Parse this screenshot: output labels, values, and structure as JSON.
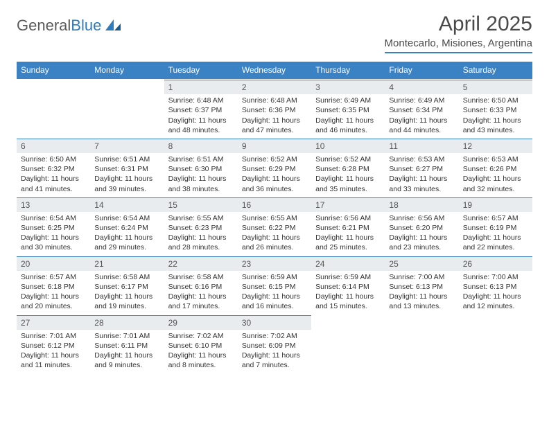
{
  "logo": {
    "text1": "General",
    "text2": "Blue"
  },
  "title": "April 2025",
  "location": "Montecarlo, Misiones, Argentina",
  "colors": {
    "header_bar": "#3b82c4",
    "daynum_bg": "#e9ecef",
    "text": "#333333",
    "title_text": "#4a4a4a"
  },
  "days_of_week": [
    "Sunday",
    "Monday",
    "Tuesday",
    "Wednesday",
    "Thursday",
    "Friday",
    "Saturday"
  ],
  "weeks": [
    [
      {
        "empty": true
      },
      {
        "empty": true
      },
      {
        "day": "1",
        "sunrise": "Sunrise: 6:48 AM",
        "sunset": "Sunset: 6:37 PM",
        "dl1": "Daylight: 11 hours",
        "dl2": "and 48 minutes."
      },
      {
        "day": "2",
        "sunrise": "Sunrise: 6:48 AM",
        "sunset": "Sunset: 6:36 PM",
        "dl1": "Daylight: 11 hours",
        "dl2": "and 47 minutes."
      },
      {
        "day": "3",
        "sunrise": "Sunrise: 6:49 AM",
        "sunset": "Sunset: 6:35 PM",
        "dl1": "Daylight: 11 hours",
        "dl2": "and 46 minutes."
      },
      {
        "day": "4",
        "sunrise": "Sunrise: 6:49 AM",
        "sunset": "Sunset: 6:34 PM",
        "dl1": "Daylight: 11 hours",
        "dl2": "and 44 minutes."
      },
      {
        "day": "5",
        "sunrise": "Sunrise: 6:50 AM",
        "sunset": "Sunset: 6:33 PM",
        "dl1": "Daylight: 11 hours",
        "dl2": "and 43 minutes."
      }
    ],
    [
      {
        "day": "6",
        "sunrise": "Sunrise: 6:50 AM",
        "sunset": "Sunset: 6:32 PM",
        "dl1": "Daylight: 11 hours",
        "dl2": "and 41 minutes."
      },
      {
        "day": "7",
        "sunrise": "Sunrise: 6:51 AM",
        "sunset": "Sunset: 6:31 PM",
        "dl1": "Daylight: 11 hours",
        "dl2": "and 39 minutes."
      },
      {
        "day": "8",
        "sunrise": "Sunrise: 6:51 AM",
        "sunset": "Sunset: 6:30 PM",
        "dl1": "Daylight: 11 hours",
        "dl2": "and 38 minutes."
      },
      {
        "day": "9",
        "sunrise": "Sunrise: 6:52 AM",
        "sunset": "Sunset: 6:29 PM",
        "dl1": "Daylight: 11 hours",
        "dl2": "and 36 minutes."
      },
      {
        "day": "10",
        "sunrise": "Sunrise: 6:52 AM",
        "sunset": "Sunset: 6:28 PM",
        "dl1": "Daylight: 11 hours",
        "dl2": "and 35 minutes."
      },
      {
        "day": "11",
        "sunrise": "Sunrise: 6:53 AM",
        "sunset": "Sunset: 6:27 PM",
        "dl1": "Daylight: 11 hours",
        "dl2": "and 33 minutes."
      },
      {
        "day": "12",
        "sunrise": "Sunrise: 6:53 AM",
        "sunset": "Sunset: 6:26 PM",
        "dl1": "Daylight: 11 hours",
        "dl2": "and 32 minutes."
      }
    ],
    [
      {
        "day": "13",
        "sunrise": "Sunrise: 6:54 AM",
        "sunset": "Sunset: 6:25 PM",
        "dl1": "Daylight: 11 hours",
        "dl2": "and 30 minutes."
      },
      {
        "day": "14",
        "sunrise": "Sunrise: 6:54 AM",
        "sunset": "Sunset: 6:24 PM",
        "dl1": "Daylight: 11 hours",
        "dl2": "and 29 minutes."
      },
      {
        "day": "15",
        "sunrise": "Sunrise: 6:55 AM",
        "sunset": "Sunset: 6:23 PM",
        "dl1": "Daylight: 11 hours",
        "dl2": "and 28 minutes."
      },
      {
        "day": "16",
        "sunrise": "Sunrise: 6:55 AM",
        "sunset": "Sunset: 6:22 PM",
        "dl1": "Daylight: 11 hours",
        "dl2": "and 26 minutes."
      },
      {
        "day": "17",
        "sunrise": "Sunrise: 6:56 AM",
        "sunset": "Sunset: 6:21 PM",
        "dl1": "Daylight: 11 hours",
        "dl2": "and 25 minutes."
      },
      {
        "day": "18",
        "sunrise": "Sunrise: 6:56 AM",
        "sunset": "Sunset: 6:20 PM",
        "dl1": "Daylight: 11 hours",
        "dl2": "and 23 minutes."
      },
      {
        "day": "19",
        "sunrise": "Sunrise: 6:57 AM",
        "sunset": "Sunset: 6:19 PM",
        "dl1": "Daylight: 11 hours",
        "dl2": "and 22 minutes."
      }
    ],
    [
      {
        "day": "20",
        "sunrise": "Sunrise: 6:57 AM",
        "sunset": "Sunset: 6:18 PM",
        "dl1": "Daylight: 11 hours",
        "dl2": "and 20 minutes."
      },
      {
        "day": "21",
        "sunrise": "Sunrise: 6:58 AM",
        "sunset": "Sunset: 6:17 PM",
        "dl1": "Daylight: 11 hours",
        "dl2": "and 19 minutes."
      },
      {
        "day": "22",
        "sunrise": "Sunrise: 6:58 AM",
        "sunset": "Sunset: 6:16 PM",
        "dl1": "Daylight: 11 hours",
        "dl2": "and 17 minutes."
      },
      {
        "day": "23",
        "sunrise": "Sunrise: 6:59 AM",
        "sunset": "Sunset: 6:15 PM",
        "dl1": "Daylight: 11 hours",
        "dl2": "and 16 minutes."
      },
      {
        "day": "24",
        "sunrise": "Sunrise: 6:59 AM",
        "sunset": "Sunset: 6:14 PM",
        "dl1": "Daylight: 11 hours",
        "dl2": "and 15 minutes."
      },
      {
        "day": "25",
        "sunrise": "Sunrise: 7:00 AM",
        "sunset": "Sunset: 6:13 PM",
        "dl1": "Daylight: 11 hours",
        "dl2": "and 13 minutes."
      },
      {
        "day": "26",
        "sunrise": "Sunrise: 7:00 AM",
        "sunset": "Sunset: 6:13 PM",
        "dl1": "Daylight: 11 hours",
        "dl2": "and 12 minutes."
      }
    ],
    [
      {
        "day": "27",
        "sunrise": "Sunrise: 7:01 AM",
        "sunset": "Sunset: 6:12 PM",
        "dl1": "Daylight: 11 hours",
        "dl2": "and 11 minutes."
      },
      {
        "day": "28",
        "sunrise": "Sunrise: 7:01 AM",
        "sunset": "Sunset: 6:11 PM",
        "dl1": "Daylight: 11 hours",
        "dl2": "and 9 minutes."
      },
      {
        "day": "29",
        "sunrise": "Sunrise: 7:02 AM",
        "sunset": "Sunset: 6:10 PM",
        "dl1": "Daylight: 11 hours",
        "dl2": "and 8 minutes."
      },
      {
        "day": "30",
        "sunrise": "Sunrise: 7:02 AM",
        "sunset": "Sunset: 6:09 PM",
        "dl1": "Daylight: 11 hours",
        "dl2": "and 7 minutes."
      },
      {
        "empty": true
      },
      {
        "empty": true
      },
      {
        "empty": true
      }
    ]
  ]
}
